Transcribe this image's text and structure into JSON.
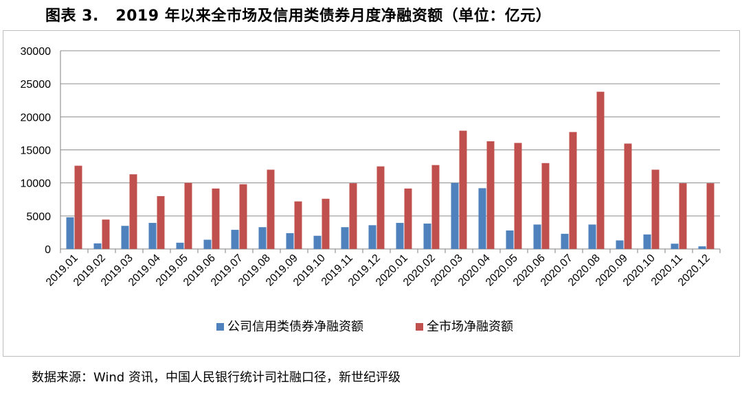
{
  "figure": {
    "label": "图表 3.",
    "title": "2019 年以来全市场及信用类债券月度净融资额（单位：亿元）"
  },
  "source_note": "数据来源：Wind 资讯，中国人民银行统计司社融口径，新世纪评级",
  "colors": {
    "series1": "#4f81bd",
    "series2": "#c0504d",
    "grid": "#8c8c8c",
    "axis": "#7f7f7f",
    "frame": "#bdbdbd"
  },
  "chart_data": {
    "type": "bar",
    "title": "",
    "xlabel": "",
    "ylabel": "",
    "ylim": [
      0,
      30000
    ],
    "yticks": [
      0,
      5000,
      10000,
      15000,
      20000,
      25000,
      30000
    ],
    "grid": true,
    "legend_position": "bottom",
    "categories": [
      "2019.01",
      "2019.02",
      "2019.03",
      "2019.04",
      "2019.05",
      "2019.06",
      "2019.07",
      "2019.08",
      "2019.09",
      "2019.10",
      "2019.11",
      "2019.12",
      "2020.01",
      "2020.02",
      "2020.03",
      "2020.04",
      "2020.05",
      "2020.06",
      "2020.07",
      "2020.08",
      "2020.09",
      "2020.10",
      "2020.11",
      "2020.12"
    ],
    "series": [
      {
        "name": "公司信用类债券净融资额",
        "color": "#4f81bd",
        "values": [
          4800,
          850,
          3500,
          3950,
          950,
          1400,
          2900,
          3300,
          2400,
          2000,
          3300,
          3600,
          3950,
          3850,
          10000,
          9200,
          2800,
          3700,
          2300,
          3700,
          1300,
          2200,
          800,
          400
        ]
      },
      {
        "name": "全市场净融资额",
        "color": "#c0504d",
        "values": [
          12600,
          4450,
          11300,
          8000,
          10000,
          9150,
          9800,
          12000,
          7200,
          7600,
          9950,
          12500,
          9150,
          12700,
          17900,
          16300,
          16050,
          13000,
          17700,
          23800,
          15950,
          12000,
          9950,
          9950
        ]
      }
    ]
  }
}
